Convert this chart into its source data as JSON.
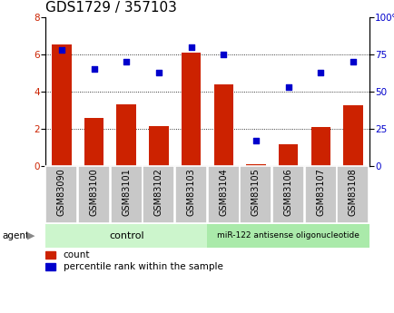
{
  "title": "GDS1729 / 357103",
  "categories": [
    "GSM83090",
    "GSM83100",
    "GSM83101",
    "GSM83102",
    "GSM83103",
    "GSM83104",
    "GSM83105",
    "GSM83106",
    "GSM83107",
    "GSM83108"
  ],
  "count_values": [
    6.55,
    2.6,
    3.3,
    2.15,
    6.1,
    4.4,
    0.1,
    1.15,
    2.1,
    3.25
  ],
  "percentile_values": [
    78,
    65,
    70,
    63,
    80,
    75,
    17,
    53,
    63,
    70
  ],
  "ylim_left": [
    0,
    8
  ],
  "ylim_right": [
    0,
    100
  ],
  "yticks_left": [
    0,
    2,
    4,
    6,
    8
  ],
  "yticks_right": [
    0,
    25,
    50,
    75,
    100
  ],
  "bar_color": "#cc2200",
  "dot_color": "#0000cc",
  "xticklabel_bg": "#c8c8c8",
  "control_label": "control",
  "treatment_label": "miR-122 antisense oligonucleotide",
  "agent_label": "agent",
  "legend_count": "count",
  "legend_percentile": "percentile rank within the sample",
  "title_fontsize": 11,
  "tick_fontsize": 7.5,
  "label_fontsize": 7
}
